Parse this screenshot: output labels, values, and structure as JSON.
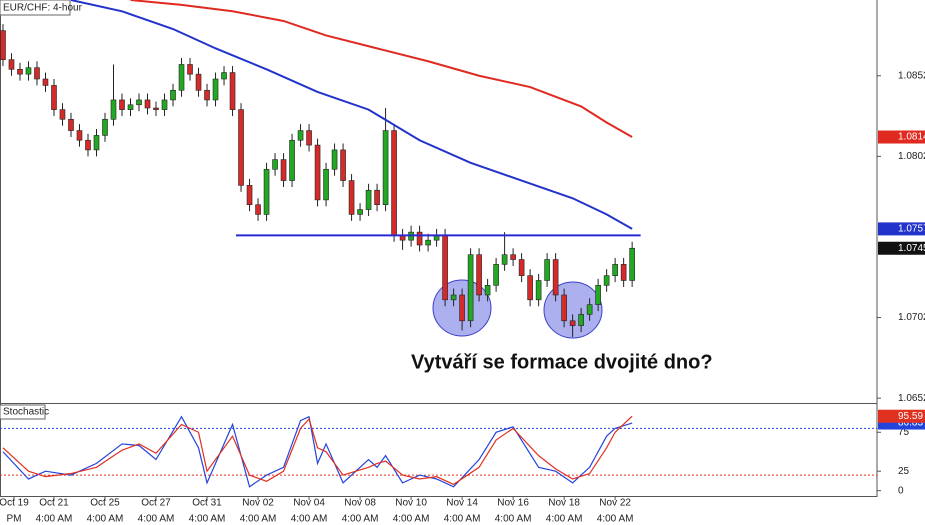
{
  "chart_data": [
    {
      "type": "candlestick",
      "title": "EUR/CHF: 4-hour",
      "open": [
        1.088,
        1.0862,
        1.0856,
        1.0853,
        1.0857,
        1.085,
        1.0846,
        1.0831,
        1.0825,
        1.0818,
        1.0812,
        1.0806,
        1.0815,
        1.0825,
        1.0837,
        1.0831,
        1.0834,
        1.0837,
        1.0832,
        1.0831,
        1.0837,
        1.0843,
        1.0859,
        1.0853,
        1.0843,
        1.0837,
        1.085,
        1.0854,
        1.0831,
        1.0784,
        1.0772,
        1.0766,
        1.0794,
        1.08,
        1.0787,
        1.0812,
        1.0818,
        1.0809,
        1.0775,
        1.0794,
        1.0806,
        1.0787,
        1.0766,
        1.0769,
        1.0781,
        1.0772,
        1.0818,
        1.0753,
        1.075,
        1.0755,
        1.0747,
        1.075,
        1.0753,
        1.0713,
        1.0716,
        1.07,
        1.0741,
        1.0716,
        1.0722,
        1.0735,
        1.0741,
        1.0738,
        1.0728,
        1.0713,
        1.0725,
        1.0738,
        1.0716,
        1.07,
        1.0697,
        1.0704,
        1.071,
        1.0722,
        1.0728,
        1.0735,
        1.0725
      ],
      "high": [
        1.0884,
        1.0866,
        1.086,
        1.0861,
        1.0861,
        1.0854,
        1.085,
        1.0835,
        1.0829,
        1.0822,
        1.0816,
        1.0819,
        1.0829,
        1.0859,
        1.0841,
        1.0838,
        1.0841,
        1.0841,
        1.0836,
        1.0841,
        1.0847,
        1.0863,
        1.0863,
        1.0857,
        1.0847,
        1.0854,
        1.0858,
        1.0858,
        1.0835,
        1.0788,
        1.0776,
        1.0798,
        1.0804,
        1.0804,
        1.0816,
        1.0822,
        1.0822,
        1.0813,
        1.0798,
        1.081,
        1.081,
        1.0791,
        1.0773,
        1.0785,
        1.0785,
        1.0832,
        1.0822,
        1.0757,
        1.0759,
        1.0759,
        1.0754,
        1.0757,
        1.0757,
        1.072,
        1.072,
        1.0745,
        1.0745,
        1.0726,
        1.0739,
        1.0755,
        1.0745,
        1.0742,
        1.0732,
        1.0729,
        1.0742,
        1.0742,
        1.072,
        1.0704,
        1.0708,
        1.0714,
        1.0726,
        1.0732,
        1.0739,
        1.0739,
        1.0749
      ],
      "low": [
        1.0858,
        1.0852,
        1.0849,
        1.0849,
        1.0846,
        1.0842,
        1.0827,
        1.0821,
        1.0814,
        1.0808,
        1.0802,
        1.0802,
        1.0811,
        1.0821,
        1.0827,
        1.0827,
        1.083,
        1.0828,
        1.0827,
        1.0827,
        1.0833,
        1.0839,
        1.0849,
        1.0839,
        1.0833,
        1.0833,
        1.0846,
        1.0827,
        1.078,
        1.0768,
        1.0762,
        1.0762,
        1.079,
        1.0783,
        1.0783,
        1.0808,
        1.0805,
        1.0771,
        1.0771,
        1.079,
        1.0783,
        1.0762,
        1.0762,
        1.0765,
        1.0768,
        1.0768,
        1.0749,
        1.0744,
        1.0746,
        1.0743,
        1.0743,
        1.0746,
        1.0709,
        1.0709,
        1.0694,
        1.0696,
        1.0712,
        1.0712,
        1.0718,
        1.0731,
        1.0734,
        1.0724,
        1.0709,
        1.0709,
        1.0721,
        1.0712,
        1.0696,
        1.069,
        1.0693,
        1.07,
        1.0706,
        1.0718,
        1.0724,
        1.0721,
        1.0721
      ],
      "close": [
        1.0862,
        1.0856,
        1.0853,
        1.0857,
        1.085,
        1.0846,
        1.0831,
        1.0825,
        1.0818,
        1.0812,
        1.0806,
        1.0815,
        1.0825,
        1.0837,
        1.0831,
        1.0834,
        1.0837,
        1.0832,
        1.0831,
        1.0837,
        1.0843,
        1.0859,
        1.0853,
        1.0843,
        1.0837,
        1.085,
        1.0854,
        1.0831,
        1.0784,
        1.0772,
        1.0766,
        1.0794,
        1.08,
        1.0787,
        1.0812,
        1.0818,
        1.0809,
        1.0775,
        1.0794,
        1.0806,
        1.0787,
        1.0766,
        1.0769,
        1.0781,
        1.0772,
        1.0818,
        1.0753,
        1.075,
        1.0755,
        1.0747,
        1.075,
        1.0753,
        1.0713,
        1.0716,
        1.07,
        1.0741,
        1.0716,
        1.0722,
        1.0735,
        1.0741,
        1.0738,
        1.0728,
        1.0713,
        1.0725,
        1.0738,
        1.0716,
        1.07,
        1.0697,
        1.0704,
        1.071,
        1.0722,
        1.0728,
        1.0735,
        1.0725,
        1.0745
      ],
      "up_color": "#22a822",
      "down_color": "#d42a2a",
      "overlays": [
        {
          "color": "#2233cc",
          "x": [
            8,
            14,
            20,
            25,
            31,
            37,
            43,
            49,
            55,
            61,
            67,
            71,
            74
          ],
          "values": [
            1.0899,
            1.0892,
            1.0881,
            1.0869,
            1.0856,
            1.0842,
            1.0831,
            1.0812,
            1.0798,
            1.0787,
            1.0776,
            1.0766,
            1.0757
          ]
        },
        {
          "color": "#e02a20",
          "x": [
            15,
            21,
            27,
            33,
            38,
            44,
            50,
            56,
            62,
            68,
            71,
            74
          ],
          "values": [
            1.0899,
            1.0896,
            1.0892,
            1.0886,
            1.0877,
            1.0869,
            1.0861,
            1.0852,
            1.0845,
            1.0833,
            1.0823,
            1.0814
          ]
        }
      ],
      "neckline": {
        "value": 1.0753,
        "x": [
          27.4,
          75
        ],
        "color": "#2a2ad0"
      },
      "annotation": "Vytváří se formace dvojité dno?",
      "xlim": [
        -0.35,
        102.8
      ],
      "ylim": [
        1.0649,
        1.0899
      ],
      "yticks": [
        1.0652,
        1.0702,
        1.0802,
        1.0852
      ],
      "xticks": [
        {
          "value": 1.3,
          "label": "Oct 19"
        },
        {
          "value": 6,
          "label": "Oct 21"
        },
        {
          "value": 12,
          "label": "Oct 25"
        },
        {
          "value": 18,
          "label": "Oct 27"
        },
        {
          "value": 24,
          "label": "Oct 31"
        },
        {
          "value": 30,
          "label": "Nov 02"
        },
        {
          "value": 36,
          "label": "Nov 04"
        },
        {
          "value": 42,
          "label": "Nov 08"
        },
        {
          "value": 48,
          "label": "Nov 10"
        },
        {
          "value": 54,
          "label": "Nov 14"
        },
        {
          "value": 60,
          "label": "Nov 16"
        },
        {
          "value": 66,
          "label": "Nov 18"
        },
        {
          "value": 72,
          "label": "Nov 22"
        }
      ],
      "xtick_times": [
        "PM",
        "4:00 AM",
        "4:00 AM",
        "4:00 AM",
        "4:00 AM",
        "4:00 AM",
        "4:00 AM",
        "4:00 AM",
        "4:00 AM",
        "4:00 AM",
        "4:00 AM",
        "4:00 AM",
        "4:00 AM"
      ]
    },
    {
      "type": "line",
      "title": "Stochastic",
      "x": [
        0,
        3,
        5,
        8,
        11,
        14,
        16,
        18,
        21,
        23,
        24,
        27,
        29,
        31,
        33,
        35,
        36,
        37,
        38,
        40,
        43,
        44,
        45,
        47,
        49,
        51,
        53,
        56,
        58,
        60,
        63,
        65,
        67,
        69,
        71,
        72,
        74
      ],
      "series": [
        {
          "color": "#2244dd",
          "values": [
            50,
            15,
            25,
            20,
            35,
            60,
            58,
            40,
            95,
            55,
            10,
            85,
            5,
            20,
            30,
            90,
            95,
            35,
            60,
            10,
            40,
            30,
            45,
            10,
            20,
            15,
            5,
            40,
            75,
            82,
            30,
            25,
            10,
            30,
            70,
            80,
            86.83
          ]
        },
        {
          "color": "#e03020",
          "values": [
            55,
            25,
            18,
            22,
            30,
            52,
            60,
            48,
            85,
            75,
            25,
            70,
            20,
            12,
            25,
            80,
            92,
            55,
            50,
            20,
            30,
            35,
            38,
            20,
            15,
            18,
            8,
            30,
            65,
            80,
            45,
            28,
            15,
            22,
            55,
            75,
            95.59
          ]
        }
      ],
      "levels": [
        {
          "value": 80,
          "color": "#2244dd"
        },
        {
          "value": 20,
          "color": "#e03020"
        }
      ],
      "xlim": [
        -0.35,
        102.8
      ],
      "ylim": [
        -3,
        110
      ],
      "yticks": [
        0,
        25,
        75
      ]
    }
  ]
}
